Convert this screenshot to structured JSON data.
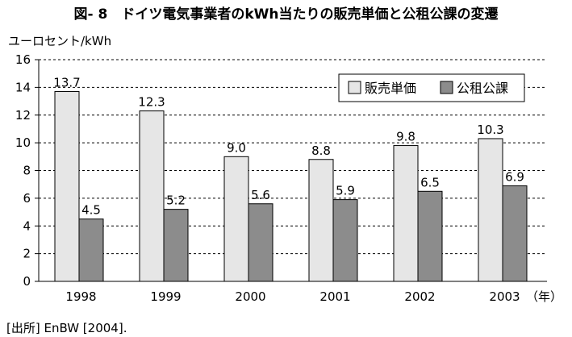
{
  "title": "図- 8　ドイツ電気事業者のkWh当たりの販売単価と公租公課の変遷",
  "source": "[出所] EnBW [2004].",
  "chart_data": {
    "type": "bar",
    "ylabel": "ユーロセント/kWh",
    "xlabel": "",
    "x_unit_label": "（年）",
    "categories": [
      "1998",
      "1999",
      "2000",
      "2001",
      "2002",
      "2003"
    ],
    "series": [
      {
        "name": "販売単価",
        "values": [
          13.7,
          12.3,
          9.0,
          8.8,
          9.8,
          10.3
        ],
        "labels": [
          "13.7",
          "12.3",
          "9.0",
          "8.8",
          "9.8",
          "10.3"
        ],
        "color": "#e6e6e6"
      },
      {
        "name": "公租公課",
        "values": [
          4.5,
          5.2,
          5.6,
          5.9,
          6.5,
          6.9
        ],
        "labels": [
          "4.5",
          "5.2",
          "5.6",
          "5.9",
          "6.5",
          "6.9"
        ],
        "color": "#8c8c8c"
      }
    ],
    "ylim": [
      0,
      16
    ],
    "yticks": [
      "0",
      "2",
      "4",
      "6",
      "8",
      "10",
      "12",
      "14",
      "16"
    ],
    "grid": true,
    "grid_style": "dashed",
    "legend_position": "top-right"
  }
}
